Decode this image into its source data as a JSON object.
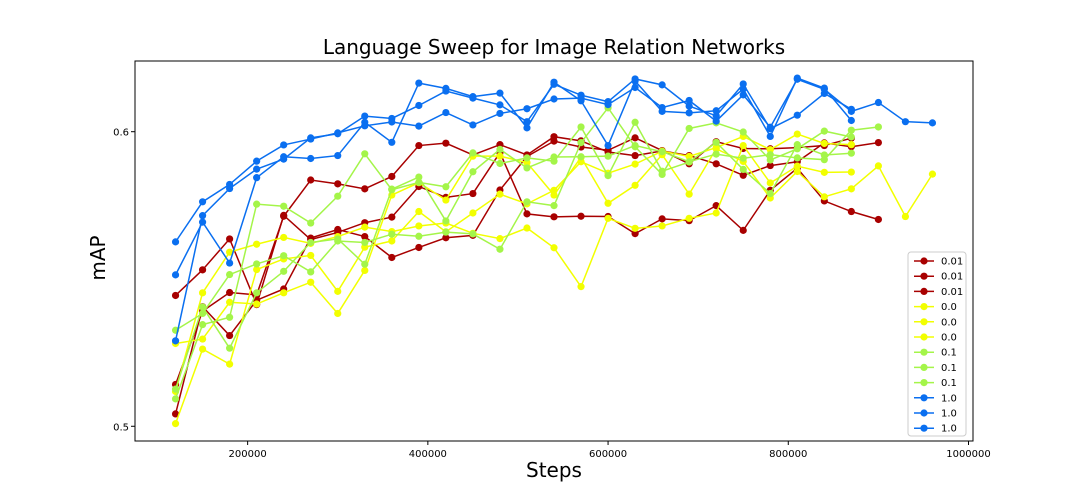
{
  "chart_data": {
    "type": "line",
    "title": "Language Sweep for Image Relation Networks",
    "xlabel": "Steps",
    "ylabel": "mAP",
    "xlim": [
      75000,
      1005000
    ],
    "ylim": [
      0.495,
      0.624
    ],
    "xticks": [
      200000,
      400000,
      600000,
      800000,
      1000000
    ],
    "yticks": [
      0.5,
      0.6
    ],
    "grid": false,
    "legend_position": "bottom-right",
    "colors": {
      "0.01": "#a80000",
      "0.0": "#f2ff00",
      "0.1": "#a4f549",
      "1.0": "#0a6ff0"
    },
    "series": [
      {
        "name": "0.01",
        "group": "0.01",
        "x": [
          120000,
          150000,
          180000,
          210000,
          240000,
          270000,
          300000,
          330000,
          360000,
          390000,
          420000,
          450000,
          480000,
          510000,
          540000,
          570000,
          600000,
          630000,
          660000,
          690000,
          720000,
          750000,
          780000,
          810000,
          840000,
          870000,
          900000
        ],
        "y": [
          0.5444,
          0.5531,
          0.5636,
          0.5413,
          0.5716,
          0.5634,
          0.5658,
          0.5691,
          0.571,
          0.5814,
          0.5777,
          0.579,
          0.5929,
          0.5721,
          0.5711,
          0.5713,
          0.5712,
          0.5654,
          0.5704,
          0.5698,
          0.5749,
          0.5665,
          0.5801,
          0.5876,
          0.5765,
          0.5729,
          0.5702
        ]
      },
      {
        "name": "0.01",
        "group": "0.01",
        "x": [
          120000,
          150000,
          180000,
          210000,
          240000,
          270000,
          300000,
          330000,
          360000,
          390000,
          420000,
          450000,
          480000,
          510000,
          540000,
          570000,
          600000,
          630000,
          660000,
          690000,
          720000,
          750000,
          780000,
          810000,
          840000,
          870000
        ],
        "y": [
          0.5042,
          0.5406,
          0.5308,
          0.5428,
          0.5466,
          0.5639,
          0.5668,
          0.5644,
          0.5573,
          0.5607,
          0.564,
          0.5648,
          0.5802,
          0.5916,
          0.5968,
          0.5948,
          0.5937,
          0.5979,
          0.5936,
          0.5891,
          0.5966,
          0.5943,
          0.5942,
          0.5946,
          0.5953,
          0.5978
        ],
        "inlegend": false
      },
      {
        "name": "0.01",
        "group": "0.01",
        "x": [
          120000,
          150000,
          180000,
          210000,
          240000,
          270000,
          300000,
          330000,
          360000,
          390000,
          420000,
          450000,
          480000,
          510000,
          540000,
          570000,
          600000,
          630000,
          660000,
          690000,
          720000,
          750000,
          780000,
          810000,
          840000,
          870000,
          900000
        ],
        "y": [
          0.5142,
          0.5391,
          0.5454,
          0.5446,
          0.5713,
          0.5836,
          0.5823,
          0.5806,
          0.5848,
          0.5953,
          0.5961,
          0.5921,
          0.5956,
          0.5921,
          0.5983,
          0.5969,
          0.5931,
          0.5919,
          0.5935,
          0.5919,
          0.5891,
          0.5852,
          0.5885,
          0.5898,
          0.5962,
          0.5949,
          0.5963
        ]
      },
      {
        "name": "0.0",
        "group": "0.0",
        "x": [
          120000,
          150000,
          180000,
          210000,
          240000,
          270000,
          300000,
          330000,
          360000,
          390000,
          420000,
          450000,
          480000,
          510000,
          540000,
          570000,
          600000,
          630000,
          660000,
          690000,
          720000,
          750000,
          780000,
          810000,
          840000,
          870000
        ],
        "y": [
          0.5009,
          0.5262,
          0.5211,
          0.5532,
          0.5568,
          0.558,
          0.5458,
          0.5608,
          0.5629,
          0.5729,
          0.566,
          0.5724,
          0.5788,
          0.5755,
          0.5801,
          0.5898,
          0.5859,
          0.589,
          0.5934,
          0.5916,
          0.5946,
          0.5984,
          0.5939,
          0.5992,
          0.596,
          0.5956
        ]
      },
      {
        "name": "0.0",
        "group": "0.0",
        "x": [
          120000,
          150000,
          180000,
          210000,
          240000,
          270000,
          300000,
          330000,
          360000,
          390000,
          420000,
          450000,
          480000,
          510000,
          540000,
          570000,
          600000,
          630000,
          660000,
          690000,
          720000,
          750000,
          780000,
          810000,
          840000,
          870000
        ],
        "y": [
          0.5118,
          0.5453,
          0.5591,
          0.5618,
          0.5641,
          0.5621,
          0.5644,
          0.5676,
          0.5661,
          0.568,
          0.569,
          0.5655,
          0.5637,
          0.5673,
          0.5606,
          0.5474,
          0.5706,
          0.5672,
          0.568,
          0.5706,
          0.5724,
          0.5953,
          0.5826,
          0.5883,
          0.5862,
          0.5863
        ]
      },
      {
        "name": "0.0",
        "group": "0.0",
        "x": [
          120000,
          150000,
          180000,
          210000,
          240000,
          270000,
          300000,
          330000,
          360000,
          390000,
          420000,
          450000,
          480000,
          510000,
          540000,
          570000,
          600000,
          630000,
          660000,
          690000,
          720000,
          750000,
          780000,
          810000,
          840000,
          870000,
          900000,
          930000,
          960000
        ],
        "y": [
          0.5281,
          0.5296,
          0.5421,
          0.5415,
          0.5453,
          0.5489,
          0.5383,
          0.5529,
          0.5785,
          0.5827,
          0.5768,
          0.5917,
          0.5917,
          0.5895,
          0.5785,
          0.5913,
          0.5757,
          0.5818,
          0.5922,
          0.5788,
          0.5942,
          0.5899,
          0.5775,
          0.5865,
          0.5779,
          0.5806,
          0.5884,
          0.5712,
          0.5856
        ]
      },
      {
        "name": "0.1",
        "group": "0.1",
        "x": [
          120000,
          150000,
          180000,
          210000,
          240000,
          270000,
          300000,
          330000,
          360000,
          390000,
          420000,
          450000,
          480000,
          510000,
          540000,
          570000,
          600000,
          630000,
          660000,
          690000,
          720000,
          750000,
          780000,
          810000,
          840000,
          870000
        ],
        "y": [
          0.5093,
          0.5345,
          0.537,
          0.5754,
          0.5747,
          0.569,
          0.5781,
          0.5925,
          0.5803,
          0.5828,
          0.5813,
          0.5928,
          0.5892,
          0.5911,
          0.59,
          0.6016,
          0.5851,
          0.6032,
          0.5866,
          0.5897,
          0.5964,
          0.5872,
          0.579,
          0.5956,
          0.5921,
          0.5927
        ]
      },
      {
        "name": "0.1",
        "group": "0.1",
        "x": [
          120000,
          150000,
          180000,
          210000,
          240000,
          270000,
          300000,
          330000,
          360000,
          390000,
          420000,
          450000,
          480000,
          510000,
          540000,
          570000,
          600000,
          630000,
          660000,
          690000,
          720000,
          750000,
          780000,
          810000,
          840000,
          870000
        ],
        "y": [
          0.5326,
          0.5383,
          0.5515,
          0.5551,
          0.5579,
          0.5524,
          0.5629,
          0.5624,
          0.5652,
          0.5645,
          0.5659,
          0.5653,
          0.5601,
          0.5762,
          0.5749,
          0.5963,
          0.6081,
          0.5949,
          0.5855,
          0.6011,
          0.603,
          0.5999,
          0.5904,
          0.5942,
          0.6002,
          0.5982
        ]
      },
      {
        "name": "0.1",
        "group": "0.1",
        "x": [
          120000,
          150000,
          180000,
          210000,
          240000,
          270000,
          300000,
          330000,
          360000,
          390000,
          420000,
          450000,
          480000,
          510000,
          540000,
          570000,
          600000,
          630000,
          660000,
          690000,
          720000,
          750000,
          780000,
          810000,
          840000,
          870000,
          900000
        ],
        "y": [
          0.5126,
          0.5405,
          0.5265,
          0.5453,
          0.5526,
          0.5624,
          0.5636,
          0.555,
          0.5805,
          0.5846,
          0.5697,
          0.5864,
          0.594,
          0.5877,
          0.5914,
          0.5915,
          0.5917,
          0.5953,
          0.5932,
          0.5898,
          0.5924,
          0.591,
          0.5922,
          0.5911,
          0.5905,
          0.6005,
          0.6016
        ]
      },
      {
        "name": "1.0",
        "group": "1.0",
        "x": [
          120000,
          150000,
          180000,
          210000,
          240000,
          270000,
          300000,
          330000,
          360000,
          390000,
          420000,
          450000,
          480000,
          510000,
          540000,
          570000,
          600000,
          630000,
          660000,
          690000,
          720000,
          750000,
          780000,
          810000,
          840000,
          870000
        ],
        "y": [
          0.529,
          0.5715,
          0.5807,
          0.5873,
          0.5907,
          0.5979,
          0.5993,
          0.6053,
          0.6045,
          0.6089,
          0.6138,
          0.6114,
          0.6091,
          0.6034,
          0.6161,
          0.6124,
          0.6102,
          0.6179,
          0.6159,
          0.6087,
          0.6054,
          0.6162,
          0.601,
          0.6056,
          0.613,
          0.6076
        ]
      },
      {
        "name": "1.0",
        "group": "1.0",
        "x": [
          120000,
          150000,
          180000,
          210000,
          240000,
          270000,
          300000,
          330000,
          360000,
          390000,
          420000,
          450000,
          480000,
          510000,
          540000,
          570000,
          600000,
          630000,
          660000,
          690000,
          720000,
          750000,
          780000,
          810000,
          840000,
          870000
        ],
        "y": [
          0.5514,
          0.5693,
          0.5554,
          0.5844,
          0.5915,
          0.5909,
          0.5919,
          0.6032,
          0.5964,
          0.6165,
          0.6147,
          0.6119,
          0.6131,
          0.6013,
          0.6168,
          0.6105,
          0.5953,
          0.6172,
          0.6069,
          0.6064,
          0.6071,
          0.6145,
          0.5984,
          0.6182,
          0.6148,
          0.6038
        ]
      },
      {
        "name": "1.0",
        "group": "1.0",
        "x": [
          120000,
          150000,
          180000,
          210000,
          240000,
          270000,
          300000,
          330000,
          360000,
          390000,
          420000,
          450000,
          480000,
          510000,
          540000,
          570000,
          600000,
          630000,
          660000,
          690000,
          720000,
          750000,
          780000,
          810000,
          840000,
          870000,
          900000,
          930000,
          960000
        ],
        "y": [
          0.5626,
          0.5762,
          0.5821,
          0.59,
          0.5955,
          0.5975,
          0.5996,
          0.602,
          0.6033,
          0.6019,
          0.6065,
          0.6023,
          0.6062,
          0.6078,
          0.6111,
          0.6114,
          0.6092,
          0.615,
          0.6082,
          0.6106,
          0.6036,
          0.6125,
          0.6015,
          0.6178,
          0.6144,
          0.6069,
          0.6099,
          0.6034,
          0.603
        ]
      }
    ]
  }
}
